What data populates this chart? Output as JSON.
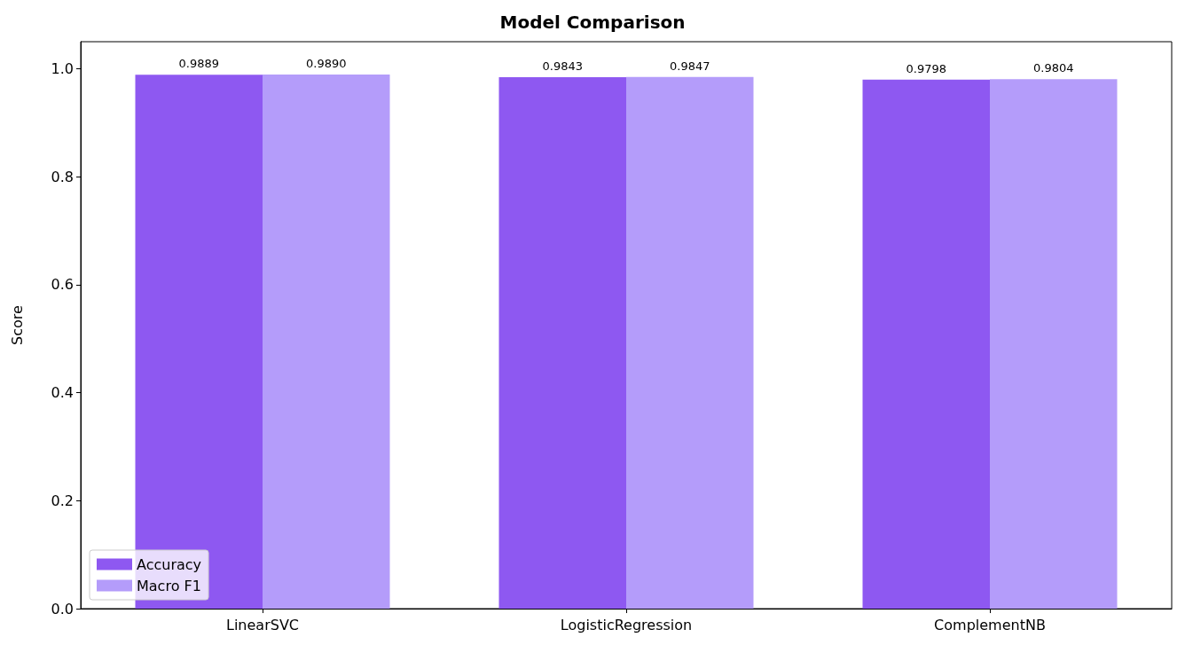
{
  "chart_data": {
    "type": "bar",
    "title": "Model Comparison",
    "ylabel": "Score",
    "categories": [
      "LinearSVC",
      "LogisticRegression",
      "ComplementNB"
    ],
    "series": [
      {
        "name": "Accuracy",
        "color": "#8e58f1",
        "values": [
          0.9889,
          0.9843,
          0.9798
        ],
        "value_labels": [
          "0.9889",
          "0.9843",
          "0.9798"
        ]
      },
      {
        "name": "Macro F1",
        "color": "#b49cfa",
        "values": [
          0.989,
          0.9847,
          0.9804
        ],
        "value_labels": [
          "0.9890",
          "0.9847",
          "0.9804"
        ]
      }
    ],
    "ylim": [
      0,
      1.05
    ],
    "yticks": [
      {
        "value": 0,
        "label": "0.0"
      },
      {
        "value": 0.2,
        "label": "0.2"
      },
      {
        "value": 0.4,
        "label": "0.4"
      },
      {
        "value": 0.6,
        "label": "0.6"
      },
      {
        "value": 0.8,
        "label": "0.8"
      },
      {
        "value": 1,
        "label": "1.0"
      }
    ],
    "legend": "bottom left"
  }
}
